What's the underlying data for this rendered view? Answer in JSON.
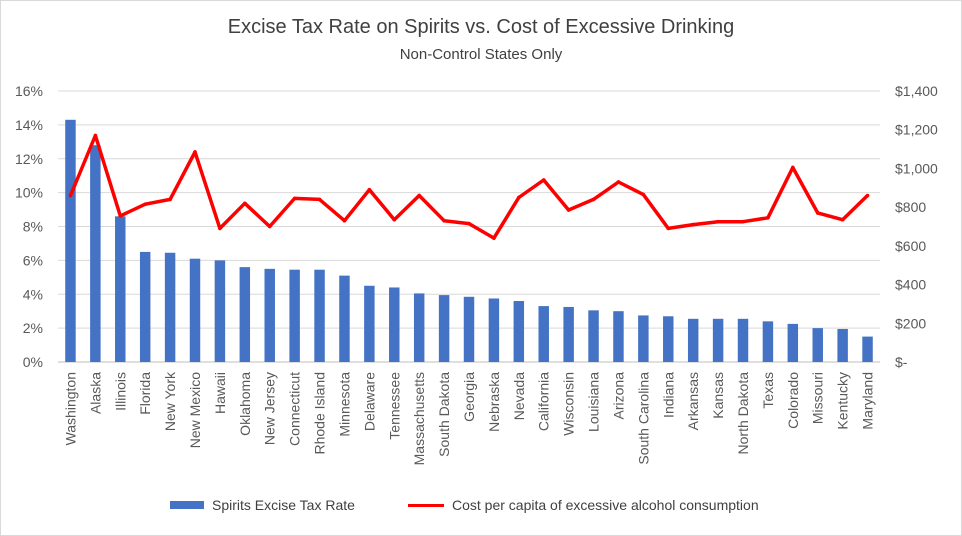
{
  "chart_data": {
    "type": "bar",
    "title": "Excise Tax Rate on Spirits vs. Cost of Excessive Drinking",
    "subtitle": "Non-Control States Only",
    "categories": [
      "Washington",
      "Alaska",
      "Illinois",
      "Florida",
      "New York",
      "New Mexico",
      "Hawaii",
      "Oklahoma",
      "New Jersey",
      "Connecticut",
      "Rhode Island",
      "Minnesota",
      "Delaware",
      "Tennessee",
      "Massachusetts",
      "South Dakota",
      "Georgia",
      "Nebraska",
      "Nevada",
      "California",
      "Wisconsin",
      "Louisiana",
      "Arizona",
      "South Carolina",
      "Indiana",
      "Arkansas",
      "Kansas",
      "North Dakota",
      "Texas",
      "Colorado",
      "Missouri",
      "Kentucky",
      "Maryland"
    ],
    "series": [
      {
        "name": "Spirits Excise Tax Rate",
        "type": "bar",
        "axis": "left",
        "color": "#4472c4",
        "values": [
          14.3,
          12.8,
          8.6,
          6.5,
          6.45,
          6.1,
          6.0,
          5.6,
          5.5,
          5.45,
          5.45,
          5.1,
          4.5,
          4.4,
          4.05,
          3.95,
          3.85,
          3.75,
          3.6,
          3.3,
          3.25,
          3.05,
          3.0,
          2.75,
          2.7,
          2.55,
          2.55,
          2.55,
          2.4,
          2.25,
          2.0,
          1.95,
          1.5
        ]
      },
      {
        "name": "Cost per capita of excessive alcohol consumption",
        "type": "line",
        "axis": "right",
        "color": "#ff0000",
        "values": [
          860,
          1170,
          755,
          815,
          840,
          1085,
          690,
          820,
          700,
          845,
          840,
          730,
          890,
          735,
          860,
          730,
          715,
          640,
          850,
          940,
          785,
          840,
          930,
          865,
          690,
          710,
          725,
          725,
          745,
          1005,
          770,
          735,
          860
        ]
      }
    ],
    "y_left": {
      "min": 0,
      "max": 16,
      "ticks": [
        "0%",
        "2%",
        "4%",
        "6%",
        "8%",
        "10%",
        "12%",
        "14%",
        "16%"
      ]
    },
    "y_right": {
      "min": 0,
      "max": 1400,
      "ticks": [
        "$-",
        "$200",
        "$400",
        "$600",
        "$800",
        "$1,000",
        "$1,200",
        "$1,400"
      ]
    },
    "grid": true,
    "legend_position": "bottom"
  }
}
